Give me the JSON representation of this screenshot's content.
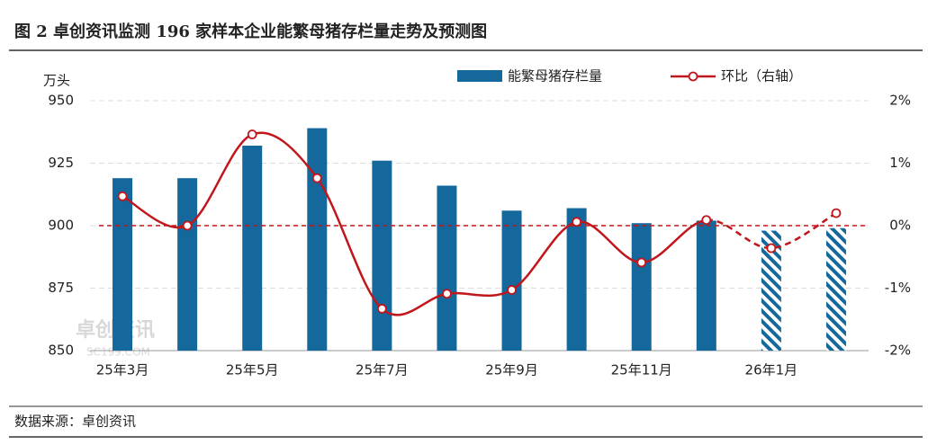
{
  "chart_data": {
    "type": "bar_line",
    "title": "图 2 卓创资讯监测 196 家样本企业能繁母猪存栏量走势及预测图",
    "y_unit": "万头",
    "source": "数据来源：卓创资讯",
    "watermark": "卓创资讯",
    "watermark_sub": "SC199.COM",
    "categories": [
      "25年3月",
      null,
      "25年5月",
      null,
      "25年7月",
      null,
      "25年9月",
      null,
      "25年11月",
      null,
      "26年1月",
      null
    ],
    "forecast_index": 10,
    "series": [
      {
        "name": "能繁母猪存栏量",
        "color": "#14689c",
        "values": [
          919,
          919,
          932,
          939,
          926,
          916,
          906,
          907,
          901,
          902,
          898,
          899
        ]
      },
      {
        "name": "环比（右轴）",
        "color": "#c0161c",
        "axis": "y2",
        "values": [
          0.47,
          0.0,
          1.46,
          0.76,
          -1.33,
          -1.09,
          -1.03,
          0.06,
          -0.59,
          0.09,
          -0.36,
          0.2
        ]
      }
    ],
    "ylim": [
      850,
      950
    ],
    "yticks": [
      850,
      875,
      900,
      925,
      950
    ],
    "y2lim": [
      -2,
      2
    ],
    "y2ticks": [
      {
        "value": -2,
        "label": "-2%"
      },
      {
        "value": -1,
        "label": "-1%"
      },
      {
        "value": 0,
        "label": "0%"
      },
      {
        "value": 1,
        "label": "1%"
      },
      {
        "value": 2,
        "label": "2%"
      }
    ],
    "grid": true
  }
}
